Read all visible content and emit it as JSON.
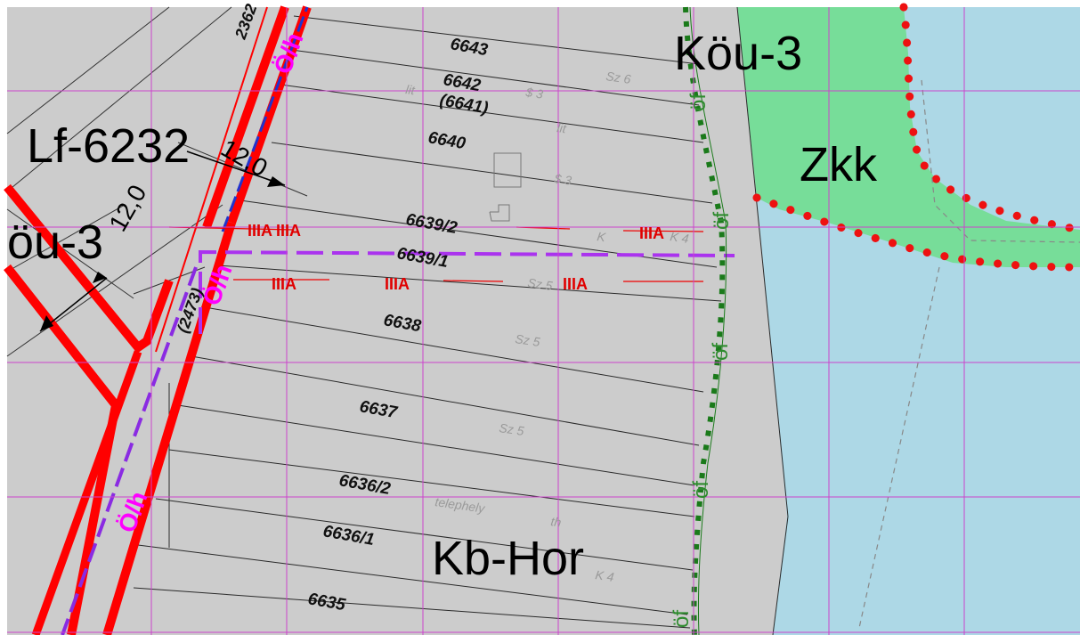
{
  "zones": {
    "kou3_top": "Köu-3",
    "zkk": "Zkk",
    "lf6232": "Lf-6232",
    "kou3_left": "öu-3",
    "kbhor": "Kb-Hor"
  },
  "dimensions": {
    "upper": "12,0",
    "lower": "12,0"
  },
  "road_codes": {
    "top": "2362",
    "mid": "(2473)"
  },
  "parcels": [
    "6643",
    "6642",
    "(6641)",
    "6640",
    "6639/2",
    "6639/1",
    "6638",
    "6637",
    "6636/2",
    "6636/1",
    "6635"
  ],
  "faint_labels": {
    "sz6": "Sz 6",
    "lit1": "lit",
    "s3a": "$ 3",
    "lit2": "lit",
    "s3b": "$ 3",
    "k": "K",
    "k4a": "K 4",
    "sz5a": "Sz 5",
    "sz5b": "Sz 5",
    "sz5c": "Sz 5",
    "telephely": "telephely",
    "th": "th",
    "k4b": "K 4"
  },
  "of_labels": [
    "öf",
    "öf",
    "öf",
    "öf",
    "öf"
  ],
  "hatch_marks": [
    "IIIA",
    "IIIA",
    "IIIA",
    "IIIA",
    "IIIA",
    "IIIA"
  ],
  "colors": {
    "map_background": "#cccccc",
    "water": "#add8e6",
    "green_zone": "#77dd99",
    "road_red": "#ff0000",
    "grid_magenta": "#cc44cc",
    "purple_boundary": "#aa33ee",
    "green_boundary": "#1a7a1a"
  }
}
